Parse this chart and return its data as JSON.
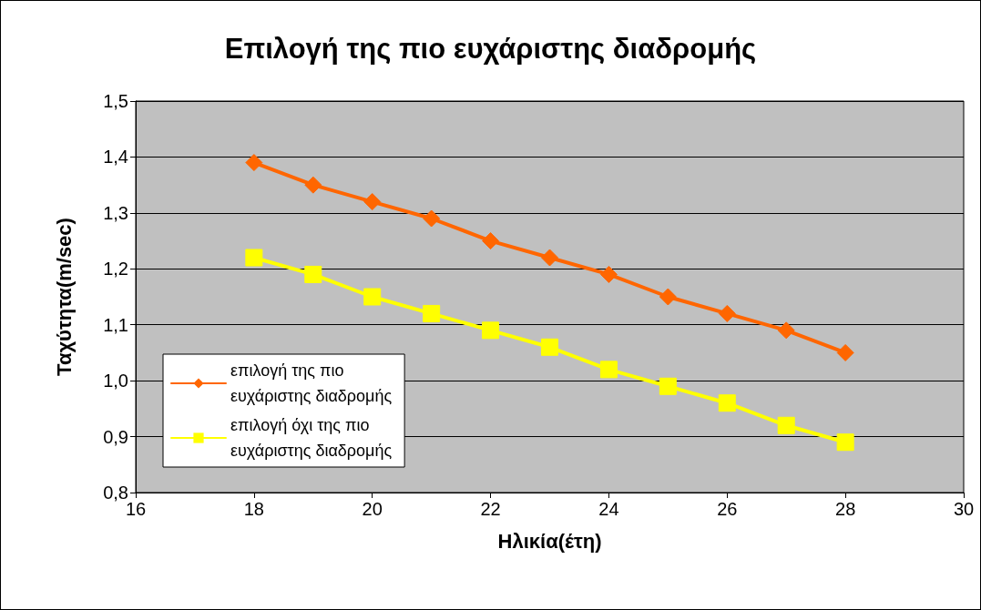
{
  "chart_data": {
    "type": "line",
    "title": "Επιλογή της πιο ευχάριστης διαδρομής",
    "xlabel": "Ηλικία(έτη)",
    "ylabel": "Ταχύτητα(m/sec)",
    "x": [
      18,
      19,
      20,
      21,
      22,
      23,
      24,
      25,
      26,
      27,
      28
    ],
    "series": [
      {
        "name": "επιλογή της πιο ευχάριστης διαδρομής",
        "color": "#ff6600",
        "marker": "diamond",
        "values": [
          1.39,
          1.35,
          1.32,
          1.29,
          1.25,
          1.22,
          1.19,
          1.15,
          1.12,
          1.09,
          1.05
        ]
      },
      {
        "name": "επιλογή όχι της πιο ευχάριστης διαδρομής",
        "color": "#ffff00",
        "marker": "square",
        "values": [
          1.22,
          1.19,
          1.15,
          1.12,
          1.09,
          1.06,
          1.02,
          0.99,
          0.96,
          0.92,
          0.89
        ]
      }
    ],
    "xlim": [
      16,
      30
    ],
    "xticks": [
      16,
      18,
      20,
      22,
      24,
      26,
      28,
      30
    ],
    "ylim": [
      0.8,
      1.5
    ],
    "yticks": [
      {
        "value": 0.8,
        "label": "0,8"
      },
      {
        "value": 0.9,
        "label": "0,9"
      },
      {
        "value": 1.0,
        "label": "1,0"
      },
      {
        "value": 1.1,
        "label": "1,1"
      },
      {
        "value": 1.2,
        "label": "1,2"
      },
      {
        "value": 1.3,
        "label": "1,3"
      },
      {
        "value": 1.4,
        "label": "1,4"
      },
      {
        "value": 1.5,
        "label": "1,5"
      }
    ],
    "grid": "y",
    "legend": "left",
    "line_style": "solid"
  }
}
